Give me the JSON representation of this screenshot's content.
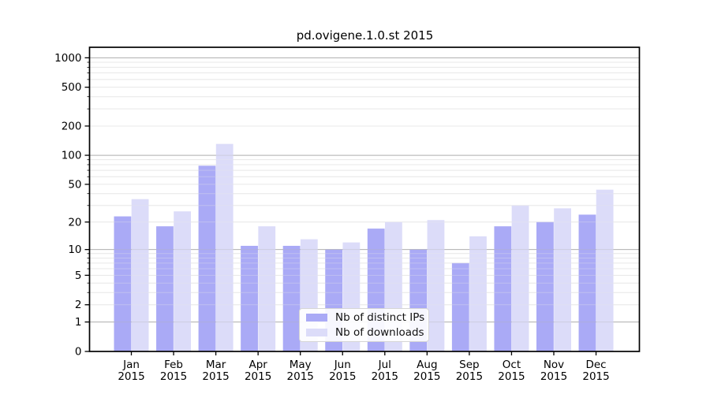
{
  "title": "pd.ovigene.1.0.st 2015",
  "chart_data": {
    "type": "bar",
    "title": "pd.ovigene.1.0.st 2015",
    "subtitle": "",
    "xlabel": "",
    "ylabel": "",
    "y_scale": "log1p",
    "y_ticks": [
      0,
      1,
      2,
      5,
      10,
      20,
      50,
      100,
      200,
      500,
      1000
    ],
    "ylim": [
      0,
      1285
    ],
    "grid": true,
    "legend_position": "lower center",
    "categories": [
      {
        "month": "Jan",
        "year": "2015"
      },
      {
        "month": "Feb",
        "year": "2015"
      },
      {
        "month": "Mar",
        "year": "2015"
      },
      {
        "month": "Apr",
        "year": "2015"
      },
      {
        "month": "May",
        "year": "2015"
      },
      {
        "month": "Jun",
        "year": "2015"
      },
      {
        "month": "Jul",
        "year": "2015"
      },
      {
        "month": "Aug",
        "year": "2015"
      },
      {
        "month": "Sep",
        "year": "2015"
      },
      {
        "month": "Oct",
        "year": "2015"
      },
      {
        "month": "Nov",
        "year": "2015"
      },
      {
        "month": "Dec",
        "year": "2015"
      }
    ],
    "series": [
      {
        "name": "Nb of distinct IPs",
        "color": "#aaaaf6",
        "values": [
          23,
          18,
          78,
          11,
          11,
          10,
          17,
          10,
          7,
          18,
          20,
          24
        ]
      },
      {
        "name": "Nb of downloads",
        "color": "#dcdcf9",
        "values": [
          35,
          26,
          131,
          18,
          13,
          12,
          20,
          21,
          14,
          30,
          28,
          44
        ]
      }
    ],
    "colors": {
      "axis": "#000000",
      "major_grid": "#b3b3b3",
      "minor_grid": "#e9e9e9",
      "tick_label": "#000000",
      "background": "#ffffff"
    }
  }
}
